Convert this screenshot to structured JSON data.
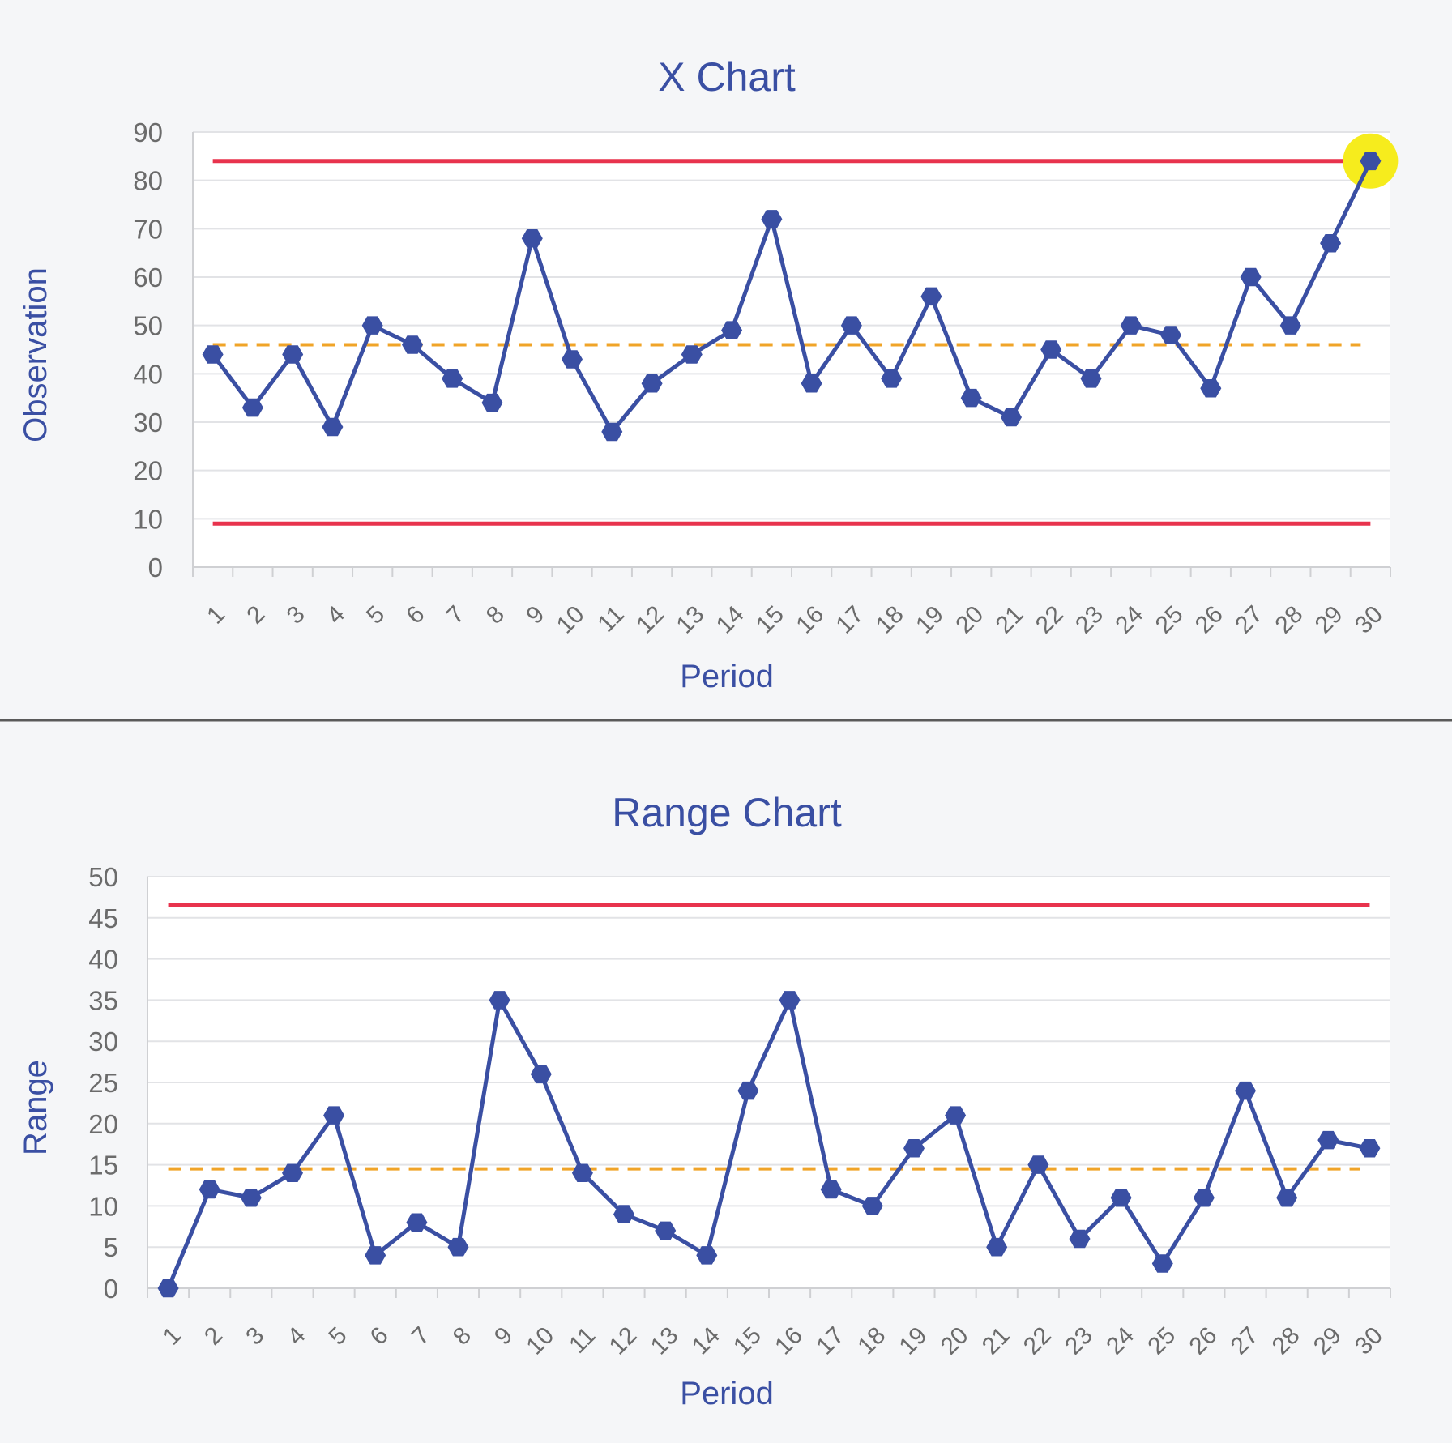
{
  "chart_data": [
    {
      "type": "line",
      "title": "X Chart",
      "xlabel": "Period",
      "ylabel": "Observation",
      "categories": [
        "1",
        "2",
        "3",
        "4",
        "5",
        "6",
        "7",
        "8",
        "9",
        "10",
        "11",
        "12",
        "13",
        "14",
        "15",
        "16",
        "17",
        "18",
        "19",
        "20",
        "21",
        "22",
        "23",
        "24",
        "25",
        "26",
        "27",
        "28",
        "29",
        "30"
      ],
      "values": [
        44,
        33,
        44,
        29,
        50,
        46,
        39,
        34,
        68,
        43,
        28,
        38,
        44,
        49,
        72,
        38,
        50,
        39,
        56,
        35,
        31,
        45,
        39,
        50,
        48,
        37,
        60,
        50,
        67,
        84
      ],
      "ucl": 84,
      "lcl": 9,
      "center_line": 46,
      "highlight_period": "30",
      "ylim": [
        0,
        90
      ],
      "yticks": [
        0,
        10,
        20,
        30,
        40,
        50,
        60,
        70,
        80,
        90
      ],
      "grid": true,
      "colors": {
        "series": "#3a4fa3",
        "limits": "#e8334d",
        "center": "#f0a428",
        "highlight": "#f6ec1d"
      }
    },
    {
      "type": "line",
      "title": "Range Chart",
      "xlabel": "Period",
      "ylabel": "Range",
      "categories": [
        "1",
        "2",
        "3",
        "4",
        "5",
        "6",
        "7",
        "8",
        "9",
        "10",
        "11",
        "12",
        "13",
        "14",
        "15",
        "16",
        "17",
        "18",
        "19",
        "20",
        "21",
        "22",
        "23",
        "24",
        "25",
        "26",
        "27",
        "28",
        "29",
        "30"
      ],
      "values": [
        0,
        12,
        11,
        14,
        21,
        4,
        8,
        5,
        35,
        26,
        14,
        9,
        7,
        4,
        24,
        35,
        12,
        10,
        17,
        21,
        5,
        15,
        6,
        11,
        3,
        11,
        24,
        11,
        18,
        17
      ],
      "ucl": 46.5,
      "center_line": 14.5,
      "ylim": [
        0,
        50
      ],
      "yticks": [
        0,
        5,
        10,
        15,
        20,
        25,
        30,
        35,
        40,
        45,
        50
      ],
      "grid": true,
      "colors": {
        "series": "#3a4fa3",
        "limits": "#e8334d",
        "center": "#f0a428"
      }
    }
  ]
}
